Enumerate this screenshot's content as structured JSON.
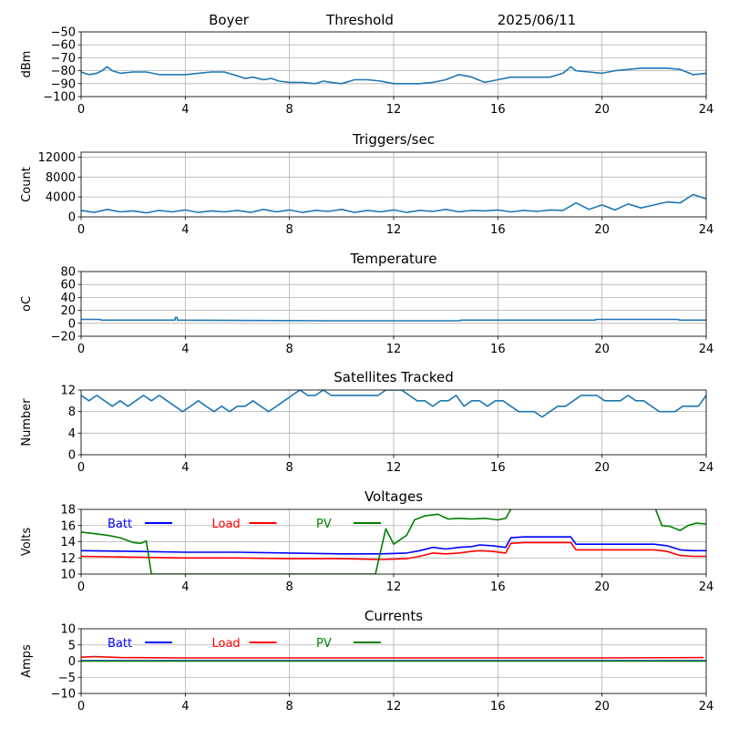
{
  "header": {
    "station": "Boyer",
    "mode": "Threshold",
    "date": "2025/06/11"
  },
  "x_axis": {
    "range": [
      0,
      24
    ],
    "ticks": [
      0,
      4,
      8,
      12,
      16,
      20,
      24
    ],
    "tick_labels": [
      "0",
      "4",
      "8",
      "12",
      "16",
      "20",
      "24"
    ]
  },
  "chart_data": [
    {
      "type": "line",
      "title": "",
      "ylabel": "dBm",
      "ylim": [
        -100,
        -50
      ],
      "yticks": [
        -100,
        -90,
        -80,
        -70,
        -60,
        -50
      ],
      "ytick_labels": [
        "−100",
        "−90",
        "−80",
        "−70",
        "−60",
        "−50"
      ],
      "grid": true,
      "series": [
        {
          "color": "#1f77b4",
          "x": [
            0,
            0.3,
            0.6,
            0.8,
            1.0,
            1.2,
            1.5,
            2.0,
            2.5,
            3.0,
            3.5,
            4.0,
            4.5,
            5.0,
            5.5,
            6.0,
            6.3,
            6.6,
            7.0,
            7.3,
            7.6,
            8.0,
            8.5,
            9.0,
            9.3,
            9.6,
            10.0,
            10.5,
            11.0,
            11.5,
            12.0,
            12.5,
            13.0,
            13.5,
            14.0,
            14.5,
            14.8,
            15.0,
            15.5,
            16.0,
            16.5,
            17.0,
            17.5,
            18.0,
            18.5,
            18.8,
            19.0,
            19.5,
            20.0,
            20.5,
            21.0,
            21.5,
            22.0,
            22.5,
            23.0,
            23.5,
            24.0
          ],
          "y": [
            -81,
            -83,
            -82,
            -80,
            -77,
            -80,
            -82,
            -81,
            -81,
            -83,
            -83,
            -83,
            -82,
            -81,
            -81,
            -84,
            -86,
            -85,
            -87,
            -86,
            -88,
            -89,
            -89,
            -90,
            -88,
            -89,
            -90,
            -87,
            -87,
            -88,
            -90,
            -90,
            -90,
            -89,
            -87,
            -83,
            -84,
            -85,
            -89,
            -87,
            -85,
            -85,
            -85,
            -85,
            -82,
            -77,
            -80,
            -81,
            -82,
            -80,
            -79,
            -78,
            -78,
            -78,
            -79,
            -83,
            -82
          ]
        }
      ]
    },
    {
      "type": "line",
      "title": "Triggers/sec",
      "ylabel": "Count",
      "ylim": [
        0,
        13000
      ],
      "yticks": [
        0,
        4000,
        8000,
        12000
      ],
      "ytick_labels": [
        "0",
        "4000",
        "8000",
        "12000"
      ],
      "grid": true,
      "series": [
        {
          "color": "#1f77b4",
          "x": [
            0,
            0.5,
            1,
            1.5,
            2,
            2.5,
            3,
            3.5,
            4,
            4.5,
            5,
            5.5,
            6,
            6.5,
            7,
            7.5,
            8,
            8.5,
            9,
            9.5,
            10,
            10.5,
            11,
            11.5,
            12,
            12.5,
            13,
            13.5,
            14,
            14.5,
            15,
            15.5,
            16,
            16.5,
            17,
            17.5,
            18,
            18.5,
            19,
            19.5,
            20,
            20.5,
            21,
            21.5,
            22,
            22.5,
            23,
            23.5,
            24
          ],
          "y": [
            1300,
            900,
            1500,
            1000,
            1200,
            800,
            1300,
            1000,
            1400,
            900,
            1200,
            1000,
            1300,
            900,
            1500,
            1000,
            1400,
            900,
            1300,
            1100,
            1500,
            900,
            1300,
            1000,
            1400,
            900,
            1300,
            1100,
            1500,
            1000,
            1300,
            1200,
            1400,
            1000,
            1300,
            1100,
            1400,
            1300,
            2800,
            1500,
            2400,
            1400,
            2600,
            1800,
            2400,
            3000,
            2800,
            4500,
            3600
          ]
        }
      ]
    },
    {
      "type": "line",
      "title": "Temperature",
      "ylabel": "oC",
      "ylim": [
        -20,
        80
      ],
      "yticks": [
        -20,
        0,
        20,
        40,
        60,
        80
      ],
      "ytick_labels": [
        "−20",
        "0",
        "20",
        "40",
        "60",
        "80"
      ],
      "grid": true,
      "series": [
        {
          "color": "#1f77b4",
          "x": [
            0,
            0.7,
            0.8,
            3.6,
            3.62,
            3.68,
            3.7,
            9.5,
            14.5,
            14.6,
            19.7,
            19.8,
            22.9,
            23.0,
            24.0
          ],
          "y": [
            6,
            6,
            5,
            5,
            9,
            9,
            5,
            4,
            4,
            5,
            5,
            6,
            6,
            5,
            5
          ]
        }
      ]
    },
    {
      "type": "line",
      "title": "Satellites Tracked",
      "ylabel": "Number",
      "ylim": [
        0,
        12
      ],
      "yticks": [
        0,
        4,
        8,
        12
      ],
      "ytick_labels": [
        "0",
        "4",
        "8",
        "12"
      ],
      "grid": true,
      "series": [
        {
          "color": "#1f77b4",
          "x": [
            0,
            0.3,
            0.6,
            0.9,
            1.2,
            1.5,
            1.8,
            2.1,
            2.4,
            2.7,
            3.0,
            3.3,
            3.6,
            3.9,
            4.2,
            4.5,
            4.8,
            5.1,
            5.4,
            5.7,
            6.0,
            6.3,
            6.6,
            6.9,
            7.2,
            7.5,
            7.8,
            8.1,
            8.4,
            8.7,
            9.0,
            9.3,
            9.6,
            9.9,
            10.2,
            10.5,
            10.8,
            11.1,
            11.4,
            11.7,
            12.0,
            12.3,
            12.6,
            12.9,
            13.2,
            13.5,
            13.8,
            14.1,
            14.4,
            14.7,
            15.0,
            15.3,
            15.6,
            15.9,
            16.2,
            16.5,
            16.8,
            17.1,
            17.4,
            17.7,
            18.0,
            18.3,
            18.6,
            18.9,
            19.2,
            19.5,
            19.8,
            20.1,
            20.4,
            20.7,
            21.0,
            21.3,
            21.6,
            21.9,
            22.2,
            22.5,
            22.8,
            23.1,
            23.4,
            23.7,
            24.0
          ],
          "y": [
            11,
            10,
            11,
            10,
            9,
            10,
            9,
            10,
            11,
            10,
            11,
            10,
            9,
            8,
            9,
            10,
            9,
            8,
            9,
            8,
            9,
            9,
            10,
            9,
            8,
            9,
            10,
            11,
            12,
            11,
            11,
            12,
            11,
            11,
            11,
            11,
            11,
            11,
            11,
            12,
            12,
            12,
            11,
            10,
            10,
            9,
            10,
            10,
            11,
            9,
            10,
            10,
            9,
            10,
            10,
            9,
            8,
            8,
            8,
            7,
            8,
            9,
            9,
            10,
            11,
            11,
            11,
            10,
            10,
            10,
            11,
            10,
            10,
            9,
            8,
            8,
            8,
            9,
            9,
            9,
            11
          ]
        }
      ]
    },
    {
      "type": "line",
      "title": "Voltages",
      "ylabel": "Volts",
      "ylim": [
        10,
        18
      ],
      "yticks": [
        10,
        12,
        14,
        16,
        18
      ],
      "ytick_labels": [
        "10",
        "12",
        "14",
        "16",
        "18"
      ],
      "grid": true,
      "legend": "top-left",
      "series": [
        {
          "name": "Batt",
          "color": "#0000ff",
          "x": [
            0,
            2,
            4,
            6,
            8,
            10,
            11.5,
            12.5,
            13,
            13.5,
            14,
            14.5,
            15,
            15.3,
            15.8,
            16.3,
            16.5,
            17,
            18,
            18.8,
            19,
            20,
            21,
            22,
            22.5,
            23,
            23.5,
            24
          ],
          "y": [
            12.9,
            12.8,
            12.7,
            12.7,
            12.6,
            12.5,
            12.5,
            12.6,
            12.9,
            13.3,
            13.1,
            13.3,
            13.4,
            13.6,
            13.5,
            13.3,
            14.5,
            14.6,
            14.6,
            14.6,
            13.7,
            13.7,
            13.7,
            13.7,
            13.5,
            13.0,
            12.9,
            12.9
          ]
        },
        {
          "name": "Load",
          "color": "#ff0000",
          "x": [
            0,
            2,
            4,
            6,
            8,
            10,
            11.5,
            12.5,
            13,
            13.5,
            14,
            14.5,
            15,
            15.3,
            15.8,
            16.3,
            16.5,
            17,
            18,
            18.8,
            19,
            20,
            21,
            22,
            22.5,
            23,
            23.5,
            24
          ],
          "y": [
            12.2,
            12.1,
            12.0,
            12.0,
            11.9,
            11.9,
            11.8,
            11.9,
            12.2,
            12.6,
            12.5,
            12.6,
            12.8,
            12.9,
            12.8,
            12.6,
            13.8,
            13.9,
            13.9,
            13.9,
            13.0,
            13.0,
            13.0,
            13.0,
            12.8,
            12.3,
            12.2,
            12.2
          ]
        },
        {
          "name": "PV",
          "color": "#008000",
          "x": [
            0,
            0.5,
            1,
            1.5,
            2,
            2.3,
            2.5,
            2.7,
            11.3,
            11.5,
            11.7,
            12.0,
            12.5,
            12.8,
            13.2,
            13.7,
            14.1,
            14.5,
            15.0,
            15.5,
            16.0,
            16.3,
            16.5,
            16.7,
            22.0,
            22.3,
            22.6,
            23.0,
            23.3,
            23.6,
            24.0
          ],
          "y": [
            15.2,
            15.0,
            14.8,
            14.5,
            13.9,
            13.8,
            14.1,
            10.0,
            10.0,
            12.8,
            15.6,
            13.7,
            14.8,
            16.7,
            17.2,
            17.4,
            16.8,
            16.9,
            16.8,
            16.9,
            16.7,
            16.9,
            18.0,
            18.5,
            18.5,
            16.0,
            15.9,
            15.4,
            16.0,
            16.3,
            16.2
          ]
        }
      ]
    },
    {
      "type": "line",
      "title": "Currents",
      "ylabel": "Amps",
      "ylim": [
        -10,
        10
      ],
      "yticks": [
        -10,
        -5,
        0,
        5,
        10
      ],
      "ytick_labels": [
        "−10",
        "−5",
        "0",
        "5",
        "10"
      ],
      "grid": true,
      "legend": "top-left",
      "series": [
        {
          "name": "Batt",
          "color": "#0000ff",
          "x": [
            0,
            24
          ],
          "y": [
            0.1,
            0.1
          ]
        },
        {
          "name": "Load",
          "color": "#ff0000",
          "x": [
            0,
            0.5,
            1.5,
            4,
            8,
            12,
            16,
            20,
            23.9
          ],
          "y": [
            1.2,
            1.4,
            1.1,
            1.0,
            1.0,
            1.0,
            1.0,
            1.0,
            1.1
          ]
        },
        {
          "name": "PV",
          "color": "#008000",
          "x": [
            0,
            24
          ],
          "y": [
            0,
            0
          ]
        }
      ]
    }
  ]
}
